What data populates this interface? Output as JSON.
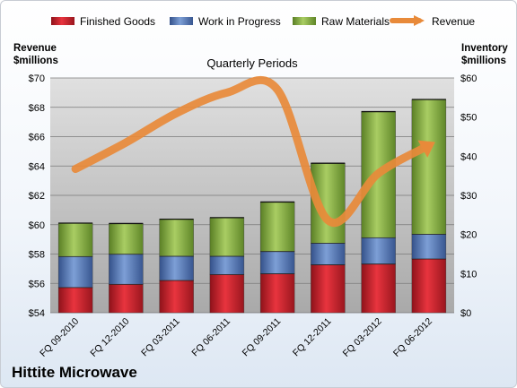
{
  "chart_data": {
    "type": "bar",
    "subtitle": "Quarterly Periods",
    "company": "Hittite Microwave",
    "left_axis": {
      "label_line1": "Revenue",
      "label_line2": "$millions",
      "ylim": [
        54,
        70
      ],
      "ticks": [
        "$54",
        "$56",
        "$58",
        "$60",
        "$62",
        "$64",
        "$66",
        "$68",
        "$70"
      ]
    },
    "right_axis": {
      "label_line1": "Inventory",
      "label_line2": "$millions",
      "ylim": [
        0,
        60
      ],
      "ticks": [
        "$0",
        "$10",
        "$20",
        "$30",
        "$40",
        "$50",
        "$60"
      ]
    },
    "categories": [
      "FQ 09-2010",
      "FQ 12-2010",
      "FQ 03-2011",
      "FQ 06-2011",
      "FQ 09-2011",
      "FQ 12-2011",
      "FQ 03-2012",
      "FQ 06-2012"
    ],
    "series": [
      {
        "name": "Finished Goods",
        "axis": "right",
        "color": "#c0202a",
        "values": [
          6.5,
          7.3,
          8.3,
          9.8,
          10.0,
          12.3,
          12.5,
          13.8
        ]
      },
      {
        "name": "Work in Progress",
        "axis": "right",
        "color": "#4f72b0",
        "values": [
          7.9,
          7.7,
          6.2,
          4.7,
          5.7,
          5.5,
          6.7,
          6.3
        ]
      },
      {
        "name": "Raw Materials",
        "axis": "right",
        "color": "#7ea53c",
        "values": [
          8.5,
          7.8,
          9.4,
          9.8,
          12.6,
          20.4,
          32.2,
          34.4
        ]
      },
      {
        "name": "Revenue",
        "axis": "left",
        "color": "#e88a3a",
        "type": "line",
        "values": [
          63.8,
          65.6,
          67.6,
          69.0,
          69.2,
          60.3,
          63.5,
          65.4
        ]
      }
    ],
    "legend_position": "top",
    "grid": true
  }
}
